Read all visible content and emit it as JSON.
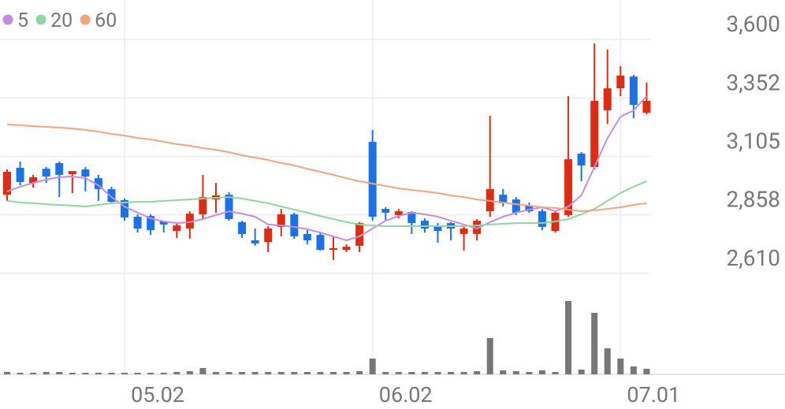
{
  "chart_data": {
    "type": "candlestick",
    "categories": [
      null,
      null,
      null,
      null,
      null,
      null,
      null,
      null,
      null,
      "05.02",
      null,
      null,
      null,
      null,
      null,
      null,
      null,
      null,
      null,
      null,
      null,
      null,
      null,
      null,
      null,
      null,
      null,
      null,
      "06.02",
      null,
      null,
      null,
      null,
      null,
      null,
      null,
      null,
      null,
      null,
      null,
      null,
      null,
      null,
      null,
      null,
      null,
      null,
      "07.01",
      null,
      null
    ],
    "open": [
      2943,
      3057,
      2993,
      3053,
      3077,
      3030,
      3050,
      3013,
      2967,
      2920,
      2850,
      2853,
      2830,
      2790,
      2800,
      2860,
      2923,
      2943,
      2827,
      2750,
      2743,
      2807,
      2860,
      2777,
      2773,
      2710,
      2710,
      2727,
      3167,
      2883,
      2857,
      2870,
      2833,
      2810,
      2823,
      2777,
      2777,
      2873,
      2943,
      2923,
      2897,
      2873,
      2790,
      2857,
      3117,
      3060,
      3300,
      3393,
      3443,
      3290
    ],
    "high": [
      3050,
      3083,
      3027,
      3060,
      3083,
      3043,
      3060,
      3027,
      2977,
      2927,
      2860,
      2860,
      2833,
      2820,
      2873,
      3027,
      2993,
      2953,
      2833,
      2800,
      2810,
      2883,
      2867,
      2793,
      2780,
      2767,
      2733,
      2827,
      3217,
      2890,
      2883,
      2873,
      2843,
      2823,
      2827,
      2807,
      2840,
      3277,
      2967,
      2933,
      2910,
      2883,
      2873,
      3360,
      3123,
      3583,
      3557,
      3487,
      3450,
      3417
    ],
    "low": [
      2917,
      2983,
      2973,
      2993,
      2933,
      2950,
      2957,
      2917,
      2907,
      2833,
      2783,
      2773,
      2783,
      2760,
      2757,
      2840,
      2867,
      2833,
      2760,
      2727,
      2700,
      2767,
      2757,
      2733,
      2707,
      2667,
      2700,
      2700,
      2833,
      2833,
      2843,
      2777,
      2783,
      2740,
      2750,
      2707,
      2750,
      2850,
      2893,
      2857,
      2867,
      2793,
      2783,
      2850,
      3000,
      3050,
      3243,
      3360,
      3267,
      3283
    ],
    "close": [
      3040,
      2997,
      3017,
      3020,
      3027,
      3043,
      3020,
      2967,
      2913,
      2847,
      2800,
      2793,
      2817,
      2813,
      2863,
      2933,
      2940,
      2840,
      2777,
      2737,
      2800,
      2860,
      2767,
      2750,
      2710,
      2717,
      2723,
      2823,
      2850,
      2867,
      2873,
      2823,
      2800,
      2790,
      2800,
      2800,
      2833,
      2967,
      2907,
      2867,
      2873,
      2807,
      2867,
      3093,
      3067,
      3340,
      3393,
      3447,
      3323,
      3340
    ],
    "up_color": "#dd2c12",
    "down_color": "#1a72e6",
    "series": [
      {
        "name": "5",
        "color": "#c98be0",
        "values": [
          2957,
          2977,
          2993,
          3007,
          3017,
          3020,
          3013,
          2983,
          2933,
          2893,
          2867,
          2843,
          2830,
          2823,
          2827,
          2840,
          2857,
          2873,
          2863,
          2850,
          2817,
          2813,
          2807,
          2797,
          2783,
          2767,
          2750,
          2767,
          2800,
          2833,
          2853,
          2867,
          2860,
          2850,
          2833,
          2817,
          2800,
          2827,
          2850,
          2867,
          2880,
          2890,
          2873,
          2893,
          2940,
          3060,
          3183,
          3273,
          3300,
          3360
        ]
      },
      {
        "name": "20",
        "color": "#8fd6a0",
        "values": [
          2917,
          2910,
          2907,
          2903,
          2900,
          2897,
          2893,
          2900,
          2907,
          2910,
          2913,
          2913,
          2917,
          2920,
          2923,
          2927,
          2930,
          2933,
          2927,
          2917,
          2907,
          2893,
          2880,
          2867,
          2853,
          2840,
          2827,
          2817,
          2813,
          2810,
          2810,
          2810,
          2810,
          2810,
          2810,
          2810,
          2813,
          2817,
          2820,
          2823,
          2823,
          2823,
          2830,
          2840,
          2860,
          2883,
          2917,
          2950,
          2977,
          3000
        ]
      },
      {
        "name": "60",
        "color": "#f4a47e",
        "values": [
          3240,
          3237,
          3233,
          3230,
          3227,
          3223,
          3217,
          3210,
          3200,
          3193,
          3183,
          3177,
          3167,
          3157,
          3150,
          3140,
          3133,
          3123,
          3110,
          3100,
          3090,
          3077,
          3067,
          3053,
          3040,
          3027,
          3013,
          3000,
          2990,
          2980,
          2970,
          2963,
          2957,
          2950,
          2940,
          2933,
          2923,
          2917,
          2910,
          2903,
          2897,
          2890,
          2887,
          2880,
          2873,
          2877,
          2883,
          2890,
          2900,
          2907
        ]
      }
    ],
    "volume": {
      "color": "#777777",
      "ylim": [
        0,
        100
      ],
      "values": [
        3,
        2,
        2,
        3,
        3,
        2,
        2,
        2,
        2,
        2,
        2,
        2,
        2,
        3,
        4,
        8,
        3,
        3,
        3,
        3,
        3,
        3,
        3,
        3,
        3,
        3,
        3,
        4,
        20,
        3,
        3,
        3,
        3,
        3,
        3,
        3,
        4,
        46,
        5,
        4,
        3,
        5,
        3,
        93,
        6,
        78,
        33,
        20,
        10,
        7
      ]
    },
    "ylim": [
      2610,
      3600
    ],
    "yticks": [
      {
        "value": 2610,
        "label": "2,610"
      },
      {
        "value": 2858,
        "label": "2,858"
      },
      {
        "value": 3105,
        "label": "3,105"
      },
      {
        "value": 3352,
        "label": "3,352"
      },
      {
        "value": 3600,
        "label": "3,600"
      }
    ],
    "grid": true
  }
}
